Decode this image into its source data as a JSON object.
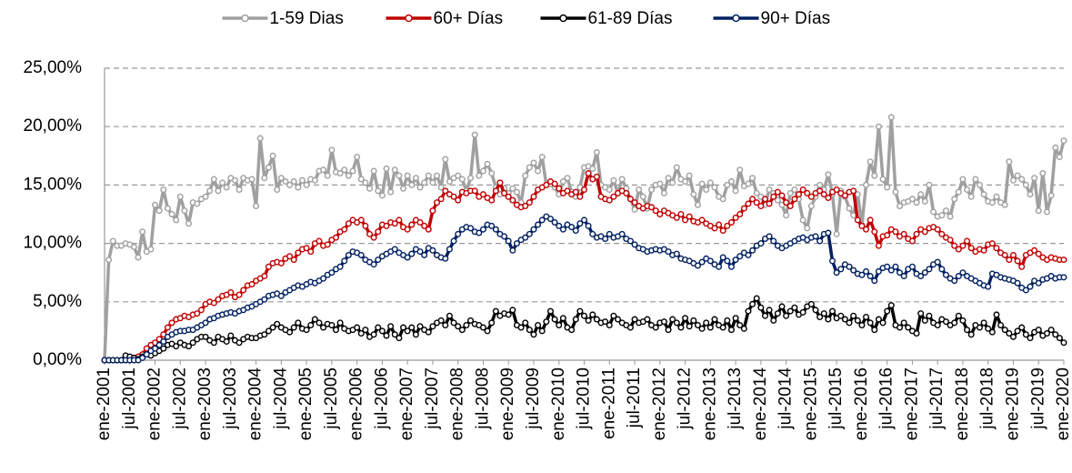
{
  "chart_data": {
    "type": "line",
    "categories": [
      "ene-2001",
      null,
      null,
      null,
      null,
      null,
      "jul-2001",
      null,
      null,
      null,
      null,
      null,
      "ene-2002",
      null,
      null,
      null,
      null,
      null,
      "jul-2002",
      null,
      null,
      null,
      null,
      null,
      "ene-2003",
      null,
      null,
      null,
      null,
      null,
      "jul-2003",
      null,
      null,
      null,
      null,
      null,
      "ene-2004",
      null,
      null,
      null,
      null,
      null,
      "jul-2004",
      null,
      null,
      null,
      null,
      null,
      "ene-2005",
      null,
      null,
      null,
      null,
      null,
      "jul-2005",
      null,
      null,
      null,
      null,
      null,
      "ene-2006",
      null,
      null,
      null,
      null,
      null,
      "jul-2006",
      null,
      null,
      null,
      null,
      null,
      "ene-2007",
      null,
      null,
      null,
      null,
      null,
      "jul-2007",
      null,
      null,
      null,
      null,
      null,
      "ene-2008",
      null,
      null,
      null,
      null,
      null,
      "jul-2008",
      null,
      null,
      null,
      null,
      null,
      "ene-2009",
      null,
      null,
      null,
      null,
      null,
      "jul-2009",
      null,
      null,
      null,
      null,
      null,
      "ene-2010",
      null,
      null,
      null,
      null,
      null,
      "jul-2010",
      null,
      null,
      null,
      null,
      null,
      "ene-2011",
      null,
      null,
      null,
      null,
      null,
      "jul-2011",
      null,
      null,
      null,
      null,
      null,
      "ene-2012",
      null,
      null,
      null,
      null,
      null,
      "jul-2012",
      null,
      null,
      null,
      null,
      null,
      "ene-2013",
      null,
      null,
      null,
      null,
      null,
      "jul-2013",
      null,
      null,
      null,
      null,
      null,
      "ene-2014",
      null,
      null,
      null,
      null,
      null,
      "jul-2014",
      null,
      null,
      null,
      null,
      null,
      "ene-2015",
      null,
      null,
      null,
      null,
      null,
      "jul-2015",
      null,
      null,
      null,
      null,
      null,
      "ene-2016",
      null,
      null,
      null,
      null,
      null,
      "jul-2016",
      null,
      null,
      null,
      null,
      null,
      "ene-2017",
      null,
      null,
      null,
      null,
      null,
      "jul-2017",
      null,
      null,
      null,
      null,
      null,
      "ene-2018",
      null,
      null,
      null,
      null,
      null,
      "jul-2018",
      null,
      null,
      null,
      null,
      null,
      "ene-2019",
      null,
      null,
      null,
      null,
      null,
      "jul-2019",
      null,
      null,
      null,
      null,
      null,
      "ene-2020"
    ],
    "series": [
      {
        "name": "1-59 Dias",
        "color": "#a0a0a0",
        "values": [
          0,
          8.6,
          10.2,
          9.8,
          9.8,
          10.0,
          9.9,
          9.7,
          8.8,
          11.0,
          9.3,
          9.5,
          13.3,
          12.8,
          14.6,
          13.0,
          12.5,
          12.0,
          14.0,
          12.8,
          11.7,
          13.5,
          13.4,
          13.8,
          14.0,
          14.5,
          15.5,
          14.5,
          15.2,
          14.8,
          15.6,
          15.4,
          14.6,
          15.6,
          15.4,
          15.5,
          13.2,
          19.0,
          15.6,
          16.5,
          17.5,
          14.6,
          15.6,
          15.3,
          15.0,
          15.3,
          14.8,
          15.4,
          15.0,
          15.5,
          15.4,
          16.2,
          16.3,
          15.8,
          18.0,
          16.1,
          16.0,
          16.3,
          15.8,
          16.2,
          17.4,
          15.5,
          15.2,
          14.7,
          16.2,
          14.5,
          14.1,
          16.4,
          14.4,
          16.3,
          15.8,
          14.7,
          15.8,
          15.0,
          15.6,
          14.8,
          15.2,
          15.8,
          15.2,
          15.8,
          14.8,
          17.2,
          15.3,
          15.6,
          15.8,
          15.5,
          14.5,
          15.6,
          19.3,
          15.8,
          16.2,
          16.8,
          16.0,
          14.8,
          14.2,
          14.7,
          14.3,
          14.7,
          14.4,
          13.5,
          15.8,
          16.5,
          16.9,
          16.2,
          17.4,
          15.0,
          15.1,
          14.8,
          14.2,
          15.3,
          15.6,
          14.4,
          14.0,
          14.8,
          16.5,
          16.6,
          16.4,
          17.8,
          15.0,
          14.8,
          14.6,
          15.4,
          14.3,
          15.5,
          14.7,
          13.8,
          12.9,
          14.6,
          14.0,
          13.0,
          14.6,
          15.0,
          15.1,
          14.3,
          15.6,
          15.2,
          16.5,
          15.5,
          15.3,
          15.8,
          14.2,
          13.3,
          15.1,
          14.6,
          15.2,
          14.8,
          14.0,
          13.8,
          15.0,
          15.3,
          14.5,
          16.3,
          14.9,
          15.1,
          15.6,
          14.3,
          14.0,
          13.3,
          14.6,
          14.3,
          13.7,
          13.3,
          12.4,
          14.3,
          14.6,
          13.8,
          12.0,
          11.3,
          13.2,
          14.0,
          15.0,
          14.6,
          15.9,
          14.2,
          10.8,
          14.5,
          14.0,
          13.0,
          12.4,
          14.2,
          11.6,
          15.0,
          17.0,
          15.8,
          20.0,
          15.5,
          14.8,
          20.8,
          14.4,
          13.2,
          13.5,
          13.6,
          13.8,
          13.5,
          14.2,
          13.6,
          15.0,
          12.7,
          12.3,
          12.4,
          12.8,
          12.3,
          13.8,
          14.4,
          15.5,
          14.6,
          14.0,
          15.5,
          15.0,
          14.2,
          13.6,
          13.5,
          14.0,
          13.5,
          13.3,
          17.0,
          15.4,
          15.8,
          15.5,
          15.0,
          14.2,
          15.6,
          12.8,
          16.0,
          12.7,
          14.1,
          18.2,
          17.4,
          18.8
        ]
      },
      {
        "name": "60+ Días",
        "color": "#c00000",
        "values": [
          0,
          0,
          0,
          0,
          0,
          0,
          0,
          0,
          0.3,
          0.5,
          1.0,
          1.3,
          1.5,
          1.8,
          2.2,
          2.8,
          3.2,
          3.5,
          3.6,
          3.8,
          3.7,
          3.9,
          4.0,
          4.3,
          4.8,
          5.0,
          4.9,
          5.2,
          5.5,
          5.6,
          5.8,
          5.4,
          5.6,
          6.0,
          6.4,
          6.5,
          6.8,
          7.0,
          7.2,
          8.0,
          8.3,
          8.4,
          8.3,
          8.7,
          8.9,
          8.6,
          9.2,
          9.5,
          9.6,
          9.3,
          10.0,
          10.2,
          9.8,
          9.9,
          10.3,
          10.5,
          11.0,
          11.2,
          11.7,
          12.0,
          11.8,
          12.0,
          11.5,
          10.8,
          10.5,
          11.0,
          11.6,
          11.5,
          11.8,
          11.7,
          12.0,
          11.4,
          11.2,
          11.6,
          12.0,
          11.8,
          11.5,
          11.2,
          12.8,
          13.5,
          13.8,
          14.5,
          14.2,
          14.0,
          13.7,
          14.4,
          14.3,
          14.5,
          14.5,
          14.0,
          14.2,
          13.9,
          13.7,
          14.5,
          15.2,
          14.3,
          14.0,
          13.7,
          13.3,
          13.1,
          13.2,
          13.5,
          14.0,
          14.6,
          14.8,
          15.0,
          15.3,
          15.1,
          14.7,
          14.3,
          14.5,
          14.2,
          14.4,
          14.0,
          14.6,
          16.0,
          15.5,
          15.7,
          14.0,
          13.8,
          13.7,
          14.0,
          14.3,
          14.5,
          14.3,
          13.8,
          13.5,
          13.2,
          13.0,
          13.2,
          13.1,
          12.8,
          12.5,
          12.8,
          12.6,
          12.4,
          12.2,
          12.5,
          12.0,
          12.3,
          11.9,
          11.8,
          12.0,
          11.7,
          11.5,
          11.3,
          11.6,
          11.1,
          11.5,
          11.8,
          12.2,
          12.5,
          13.0,
          13.4,
          13.8,
          13.5,
          13.2,
          13.8,
          13.4,
          14.0,
          14.4,
          14.1,
          13.5,
          13.2,
          13.8,
          14.2,
          14.6,
          14.3,
          14.0,
          14.3,
          14.5,
          14.2,
          13.9,
          14.4,
          14.6,
          14.3,
          14.1,
          14.4,
          14.5,
          12.0,
          11.5,
          11.2,
          12.0,
          11.0,
          9.8,
          10.6,
          10.7,
          11.2,
          11.0,
          10.6,
          10.8,
          10.4,
          10.2,
          10.8,
          11.2,
          11.0,
          11.3,
          11.4,
          11.2,
          10.8,
          10.5,
          10.3,
          9.8,
          9.5,
          9.8,
          10.2,
          9.6,
          9.3,
          9.5,
          9.4,
          9.9,
          10.0,
          9.6,
          9.2,
          9.0,
          8.6,
          9.0,
          8.5,
          8.0,
          9.0,
          9.2,
          9.4,
          9.1,
          8.8,
          8.6,
          8.8,
          8.7,
          8.6,
          8.6
        ]
      },
      {
        "name": "61-89 Días",
        "color": "#000000",
        "values": [
          0,
          0,
          0,
          0,
          0,
          0.4,
          0.3,
          0.2,
          0.1,
          0.3,
          0.5,
          0.4,
          0.6,
          0.8,
          1.0,
          1.3,
          1.4,
          1.2,
          1.5,
          1.3,
          1.2,
          1.5,
          1.8,
          2.0,
          2.0,
          1.7,
          1.5,
          2.0,
          1.8,
          1.6,
          2.1,
          1.7,
          1.5,
          1.8,
          2.0,
          1.9,
          1.9,
          2.1,
          2.2,
          2.5,
          2.8,
          3.1,
          2.8,
          2.6,
          2.4,
          2.8,
          3.2,
          2.7,
          2.6,
          3.0,
          3.5,
          3.2,
          2.8,
          3.1,
          3.0,
          2.6,
          3.2,
          2.7,
          2.5,
          2.6,
          2.8,
          2.3,
          2.6,
          2.0,
          2.2,
          2.8,
          2.5,
          2.1,
          2.9,
          2.2,
          1.9,
          2.8,
          2.5,
          2.8,
          2.2,
          2.9,
          2.6,
          2.4,
          2.9,
          3.2,
          3.4,
          3.0,
          3.8,
          3.2,
          2.9,
          2.6,
          3.0,
          3.4,
          3.1,
          3.0,
          2.8,
          2.5,
          3.2,
          4.2,
          3.8,
          4.0,
          3.9,
          4.3,
          3.0,
          2.8,
          3.2,
          2.6,
          2.2,
          3.0,
          2.5,
          3.3,
          4.2,
          3.5,
          3.0,
          3.6,
          2.8,
          2.6,
          3.5,
          4.2,
          3.8,
          3.4,
          3.9,
          3.5,
          3.2,
          3.3,
          3.0,
          3.8,
          3.5,
          3.2,
          3.0,
          2.8,
          3.5,
          3.2,
          3.3,
          3.5,
          3.0,
          2.8,
          3.2,
          3.3,
          2.6,
          3.5,
          3.2,
          2.8,
          3.6,
          2.9,
          3.4,
          3.0,
          2.7,
          3.2,
          2.8,
          3.5,
          3.0,
          2.8,
          3.4,
          2.6,
          3.6,
          3.0,
          2.7,
          4.2,
          4.8,
          5.3,
          4.5,
          3.8,
          4.3,
          3.4,
          4.0,
          4.6,
          3.8,
          4.2,
          4.5,
          3.9,
          4.1,
          4.6,
          4.8,
          4.3,
          3.7,
          4.0,
          3.5,
          4.2,
          3.6,
          3.8,
          3.5,
          3.2,
          3.8,
          3.4,
          3.0,
          3.7,
          3.2,
          2.6,
          3.5,
          3.2,
          4.2,
          4.7,
          3.0,
          2.8,
          3.2,
          2.8,
          2.5,
          2.3,
          4.0,
          3.4,
          3.8,
          3.2,
          3.0,
          3.5,
          3.3,
          3.0,
          3.2,
          3.8,
          3.4,
          2.6,
          2.2,
          3.0,
          2.8,
          3.2,
          2.7,
          2.4,
          3.9,
          3.0,
          2.6,
          2.3,
          2.0,
          2.5,
          2.8,
          2.2,
          1.9,
          2.4,
          2.6,
          2.1,
          2.3,
          2.6,
          2.2,
          1.9,
          1.5
        ]
      },
      {
        "name": "90+ Días",
        "color": "#002060",
        "values": [
          0,
          0,
          0,
          0,
          0,
          0,
          0,
          0,
          0,
          0.2,
          0.5,
          0.8,
          1.0,
          1.3,
          1.6,
          2.0,
          2.2,
          2.4,
          2.5,
          2.5,
          2.6,
          2.6,
          2.8,
          3.0,
          3.2,
          3.5,
          3.6,
          3.8,
          3.9,
          4.0,
          4.1,
          4.0,
          4.2,
          4.3,
          4.5,
          4.6,
          4.8,
          5.0,
          5.2,
          5.5,
          5.6,
          5.7,
          5.5,
          5.8,
          6.0,
          6.2,
          6.4,
          6.3,
          6.5,
          6.7,
          6.6,
          6.8,
          7.0,
          7.3,
          7.5,
          7.8,
          8.0,
          8.5,
          9.0,
          9.3,
          9.2,
          9.0,
          8.6,
          8.4,
          8.2,
          8.6,
          8.9,
          9.1,
          9.3,
          9.5,
          9.2,
          9.0,
          8.8,
          9.1,
          9.5,
          9.3,
          9.0,
          9.6,
          9.4,
          9.0,
          8.8,
          8.7,
          9.5,
          10.2,
          10.8,
          11.2,
          11.4,
          11.3,
          11.0,
          10.9,
          11.2,
          11.6,
          11.5,
          11.2,
          10.8,
          10.6,
          10.2,
          9.4,
          10.0,
          10.3,
          10.5,
          10.8,
          11.2,
          11.6,
          12.0,
          12.3,
          12.1,
          11.8,
          11.5,
          11.2,
          11.6,
          11.4,
          11.1,
          11.7,
          12.0,
          11.5,
          10.8,
          10.5,
          10.6,
          10.4,
          10.8,
          10.5,
          10.6,
          10.8,
          10.4,
          10.2,
          9.9,
          9.6,
          9.5,
          9.3,
          9.4,
          9.5,
          9.4,
          9.5,
          9.3,
          9.0,
          9.1,
          8.7,
          8.6,
          8.5,
          8.3,
          8.1,
          8.4,
          8.7,
          8.5,
          8.2,
          8.0,
          8.8,
          8.5,
          8.0,
          8.6,
          8.9,
          9.2,
          9.0,
          9.4,
          9.8,
          10.0,
          10.4,
          10.6,
          10.2,
          9.8,
          9.6,
          9.8,
          10.0,
          10.2,
          10.4,
          10.5,
          10.3,
          10.5,
          10.6,
          10.2,
          10.8,
          10.9,
          8.5,
          7.5,
          7.8,
          8.2,
          8.0,
          7.7,
          7.4,
          7.3,
          7.6,
          7.2,
          6.8,
          7.6,
          7.9,
          8.0,
          7.7,
          8.0,
          7.5,
          7.2,
          7.8,
          8.0,
          7.4,
          7.2,
          7.5,
          7.8,
          8.2,
          8.4,
          7.8,
          7.3,
          7.0,
          6.8,
          7.2,
          7.5,
          7.2,
          7.0,
          6.8,
          6.6,
          6.4,
          6.3,
          7.4,
          7.3,
          7.1,
          7.0,
          6.9,
          6.8,
          6.6,
          6.2,
          6.0,
          6.3,
          6.8,
          6.6,
          6.9,
          7.0,
          7.2,
          7.0,
          7.1,
          7.1
        ]
      }
    ],
    "ylim": [
      0,
      25
    ],
    "yticks": [
      {
        "value": 0,
        "label": "0,00%"
      },
      {
        "value": 5,
        "label": "5,00%"
      },
      {
        "value": 10,
        "label": "10,00%"
      },
      {
        "value": 15,
        "label": "15,00%"
      },
      {
        "value": 20,
        "label": "20,00%"
      },
      {
        "value": 25,
        "label": "25,00%"
      }
    ],
    "grid": true,
    "legend": "top"
  }
}
